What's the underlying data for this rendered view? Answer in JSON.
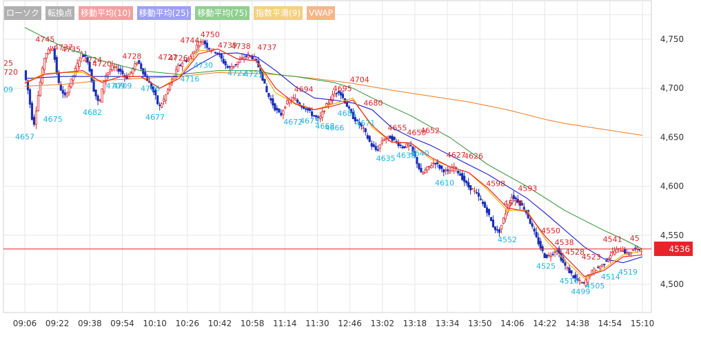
{
  "legend": [
    {
      "label": "ローソク",
      "bg": "#b0b0b0",
      "fg": "#ffffff"
    },
    {
      "label": "転換点",
      "bg": "#b0b0b0",
      "fg": "#ffffff"
    },
    {
      "label": "移動平均(10)",
      "bg": "#f4a0a0",
      "fg": "#ffffff"
    },
    {
      "label": "移動平均(25)",
      "bg": "#9ea0f4",
      "fg": "#ffffff"
    },
    {
      "label": "移動平均(75)",
      "bg": "#8fcf8f",
      "fg": "#ffffff"
    },
    {
      "label": "指数平滑(9)",
      "bg": "#f4d080",
      "fg": "#ffffff"
    },
    {
      "label": "VWAP",
      "bg": "#f6b58a",
      "fg": "#ffffff"
    }
  ],
  "current_price": {
    "label": "4536",
    "value": 4536,
    "color": "#e8232a"
  },
  "colors": {
    "up": "#d7262a",
    "down": "#1c2fb8",
    "ma10": "#e8232a",
    "ma25": "#2b2bd0",
    "ma75": "#2f8f2f",
    "ema9": "#f2b400",
    "vwap": "#f07820",
    "grid": "#e6e6e6"
  },
  "chart_data": {
    "type": "candlestick",
    "y_ticks": [
      "4,750",
      "4,700",
      "4,650",
      "4,600",
      "4,550",
      "4,500"
    ],
    "y_tick_values": [
      4750,
      4700,
      4650,
      4600,
      4550,
      4500
    ],
    "ylim": [
      4480,
      4790
    ],
    "x_ticks": [
      "09:06",
      "09:22",
      "09:38",
      "09:54",
      "10:10",
      "10:26",
      "10:42",
      "10:58",
      "11:14",
      "11:30",
      "12:46",
      "13:02",
      "13:18",
      "13:34",
      "13:50",
      "14:06",
      "14:22",
      "14:38",
      "14:54",
      "15:10"
    ],
    "price_path": [
      [
        0,
        4718
      ],
      [
        0.2,
        4700
      ],
      [
        0.5,
        4660
      ],
      [
        0.8,
        4700
      ],
      [
        1.1,
        4735
      ],
      [
        1.5,
        4742
      ],
      [
        1.8,
        4705
      ],
      [
        2.1,
        4690
      ],
      [
        2.5,
        4710
      ],
      [
        3,
        4736
      ],
      [
        3.3,
        4729
      ],
      [
        3.6,
        4700
      ],
      [
        3.9,
        4683
      ],
      [
        4.2,
        4712
      ],
      [
        4.6,
        4722
      ],
      [
        5,
        4718
      ],
      [
        5.3,
        4710
      ],
      [
        5.6,
        4718
      ],
      [
        5.9,
        4728
      ],
      [
        6.2,
        4716
      ],
      [
        6.5,
        4705
      ],
      [
        6.8,
        4693
      ],
      [
        7,
        4680
      ],
      [
        7.3,
        4690
      ],
      [
        7.6,
        4705
      ],
      [
        8,
        4722
      ],
      [
        8.3,
        4728
      ],
      [
        8.6,
        4730
      ],
      [
        9,
        4745
      ],
      [
        9.3,
        4748
      ],
      [
        9.6,
        4740
      ],
      [
        10,
        4737
      ],
      [
        10.3,
        4728
      ],
      [
        10.6,
        4720
      ],
      [
        11,
        4725
      ],
      [
        11.3,
        4730
      ],
      [
        11.6,
        4734
      ],
      [
        12,
        4730
      ],
      [
        12.3,
        4715
      ],
      [
        12.6,
        4695
      ],
      [
        13,
        4680
      ],
      [
        13.3,
        4672
      ],
      [
        13.6,
        4685
      ],
      [
        14,
        4690
      ],
      [
        14.3,
        4683
      ],
      [
        14.6,
        4680
      ],
      [
        15,
        4672
      ],
      [
        15.3,
        4668
      ],
      [
        15.6,
        4680
      ],
      [
        16,
        4692
      ],
      [
        16.3,
        4698
      ],
      [
        16.6,
        4688
      ],
      [
        17,
        4672
      ],
      [
        17.3,
        4665
      ],
      [
        17.6,
        4658
      ],
      [
        18,
        4642
      ],
      [
        18.3,
        4636
      ],
      [
        18.6,
        4648
      ],
      [
        19,
        4650
      ],
      [
        19.3,
        4645
      ],
      [
        19.6,
        4640
      ],
      [
        20,
        4642
      ],
      [
        20.3,
        4628
      ],
      [
        20.6,
        4612
      ],
      [
        21,
        4620
      ],
      [
        21.3,
        4625
      ],
      [
        21.6,
        4618
      ],
      [
        22,
        4614
      ],
      [
        22.3,
        4620
      ],
      [
        22.6,
        4612
      ],
      [
        23,
        4600
      ],
      [
        23.3,
        4596
      ],
      [
        23.6,
        4588
      ],
      [
        24,
        4575
      ],
      [
        24.3,
        4560
      ],
      [
        24.6,
        4552
      ],
      [
        25,
        4575
      ],
      [
        25.3,
        4590
      ],
      [
        25.6,
        4585
      ],
      [
        26,
        4575
      ],
      [
        26.3,
        4560
      ],
      [
        26.6,
        4545
      ],
      [
        27,
        4528
      ],
      [
        27.3,
        4530
      ],
      [
        27.6,
        4536
      ],
      [
        28,
        4520
      ],
      [
        28.3,
        4512
      ],
      [
        28.6,
        4505
      ],
      [
        29,
        4500
      ],
      [
        29.3,
        4510
      ],
      [
        29.6,
        4515
      ],
      [
        30,
        4520
      ],
      [
        30.3,
        4528
      ],
      [
        30.6,
        4534
      ],
      [
        31,
        4536
      ],
      [
        31.3,
        4530
      ],
      [
        31.6,
        4536
      ],
      [
        32,
        4536
      ]
    ],
    "highs": [
      {
        "label": "4745",
        "x": 1.05,
        "y": 4745
      },
      {
        "label": "4737",
        "x": 2.0,
        "y": 4737
      },
      {
        "label": "4735",
        "x": 2.4,
        "y": 4735
      },
      {
        "label": "4724",
        "x": 3.5,
        "y": 4724
      },
      {
        "label": "4720",
        "x": 4.0,
        "y": 4720
      },
      {
        "label": "4728",
        "x": 5.55,
        "y": 4728
      },
      {
        "label": "4727",
        "x": 7.4,
        "y": 4727
      },
      {
        "label": "4726",
        "x": 7.95,
        "y": 4726
      },
      {
        "label": "4744",
        "x": 8.55,
        "y": 4744
      },
      {
        "label": "4750",
        "x": 9.6,
        "y": 4750
      },
      {
        "label": "4739",
        "x": 10.5,
        "y": 4739
      },
      {
        "label": "4738",
        "x": 11.2,
        "y": 4738
      },
      {
        "label": "4737",
        "x": 12.55,
        "y": 4737
      },
      {
        "label": "4694",
        "x": 14.45,
        "y": 4694
      },
      {
        "label": "4695",
        "x": 16.45,
        "y": 4695
      },
      {
        "label": "4704",
        "x": 17.35,
        "y": 4704
      },
      {
        "label": "4680",
        "x": 18.05,
        "y": 4680
      },
      {
        "label": "4655",
        "x": 19.3,
        "y": 4655
      },
      {
        "label": "4650",
        "x": 20.3,
        "y": 4650
      },
      {
        "label": "4652",
        "x": 21.0,
        "y": 4652
      },
      {
        "label": "4627",
        "x": 22.35,
        "y": 4627
      },
      {
        "label": "4626",
        "x": 23.25,
        "y": 4626
      },
      {
        "label": "4598",
        "x": 24.4,
        "y": 4598
      },
      {
        "label": "4593",
        "x": 26.05,
        "y": 4593
      },
      {
        "label": "4578",
        "x": 25.3,
        "y": 4578
      },
      {
        "label": "4550",
        "x": 27.25,
        "y": 4550
      },
      {
        "label": "4538",
        "x": 27.95,
        "y": 4538
      },
      {
        "label": "4528",
        "x": 28.5,
        "y": 4528
      },
      {
        "label": "4523",
        "x": 29.35,
        "y": 4523
      },
      {
        "label": "4541",
        "x": 30.45,
        "y": 4541
      },
      {
        "label": "45",
        "x": 31.6,
        "y": 4542
      }
    ],
    "lows": [
      {
        "label": "4657",
        "x": 0.0,
        "y": 4657
      },
      {
        "label": "4675",
        "x": 1.45,
        "y": 4675
      },
      {
        "label": "4682",
        "x": 3.5,
        "y": 4682
      },
      {
        "label": "4709",
        "x": 4.7,
        "y": 4709
      },
      {
        "label": "4709",
        "x": 5.05,
        "y": 4709
      },
      {
        "label": "4706",
        "x": 6.5,
        "y": 4706
      },
      {
        "label": "4677",
        "x": 6.75,
        "y": 4677
      },
      {
        "label": "4716",
        "x": 8.55,
        "y": 4716
      },
      {
        "label": "4730",
        "x": 9.25,
        "y": 4730
      },
      {
        "label": "4722",
        "x": 11.0,
        "y": 4722
      },
      {
        "label": "4721",
        "x": 11.85,
        "y": 4721
      },
      {
        "label": "4672",
        "x": 13.9,
        "y": 4672
      },
      {
        "label": "4673",
        "x": 14.75,
        "y": 4673
      },
      {
        "label": "4668",
        "x": 15.55,
        "y": 4668
      },
      {
        "label": "4666",
        "x": 16.05,
        "y": 4666
      },
      {
        "label": "4681",
        "x": 16.7,
        "y": 4681
      },
      {
        "label": "4671",
        "x": 17.65,
        "y": 4671
      },
      {
        "label": "4635",
        "x": 18.7,
        "y": 4635
      },
      {
        "label": "4638",
        "x": 19.75,
        "y": 4638
      },
      {
        "label": "4640",
        "x": 20.45,
        "y": 4640
      },
      {
        "label": "4610",
        "x": 21.75,
        "y": 4610
      },
      {
        "label": "4552",
        "x": 25.0,
        "y": 4552
      },
      {
        "label": "4525",
        "x": 27.0,
        "y": 4525
      },
      {
        "label": "4510",
        "x": 28.2,
        "y": 4510
      },
      {
        "label": "4499",
        "x": 28.8,
        "y": 4499
      },
      {
        "label": "4505",
        "x": 29.55,
        "y": 4505
      },
      {
        "label": "4514",
        "x": 30.35,
        "y": 4514
      },
      {
        "label": "4519",
        "x": 31.25,
        "y": 4519
      }
    ],
    "cut_left_labels": [
      {
        "label": "25",
        "y": 4723
      },
      {
        "label": "720",
        "y": 4714
      },
      {
        "label": "09",
        "y": 4696
      }
    ],
    "ma10": [
      [
        0,
        4705
      ],
      [
        1,
        4714
      ],
      [
        2,
        4716
      ],
      [
        3,
        4718
      ],
      [
        4,
        4706
      ],
      [
        5,
        4712
      ],
      [
        6,
        4712
      ],
      [
        7,
        4700
      ],
      [
        8,
        4710
      ],
      [
        9,
        4735
      ],
      [
        10,
        4740
      ],
      [
        11,
        4730
      ],
      [
        12,
        4728
      ],
      [
        13,
        4700
      ],
      [
        14,
        4684
      ],
      [
        15,
        4678
      ],
      [
        16,
        4682
      ],
      [
        17,
        4688
      ],
      [
        18,
        4662
      ],
      [
        19,
        4645
      ],
      [
        20,
        4644
      ],
      [
        21,
        4630
      ],
      [
        22,
        4620
      ],
      [
        23,
        4614
      ],
      [
        24,
        4598
      ],
      [
        25,
        4578
      ],
      [
        26,
        4574
      ],
      [
        27,
        4548
      ],
      [
        28,
        4528
      ],
      [
        29,
        4508
      ],
      [
        30,
        4514
      ],
      [
        31,
        4528
      ],
      [
        32,
        4530
      ]
    ],
    "ma25": [
      [
        0,
        4710
      ],
      [
        2,
        4712
      ],
      [
        4,
        4712
      ],
      [
        6,
        4712
      ],
      [
        8,
        4712
      ],
      [
        9,
        4724
      ],
      [
        10,
        4735
      ],
      [
        11,
        4736
      ],
      [
        12,
        4732
      ],
      [
        13,
        4718
      ],
      [
        14,
        4702
      ],
      [
        15,
        4690
      ],
      [
        16,
        4688
      ],
      [
        17,
        4685
      ],
      [
        18,
        4678
      ],
      [
        19,
        4660
      ],
      [
        20,
        4650
      ],
      [
        21,
        4642
      ],
      [
        22,
        4632
      ],
      [
        23,
        4622
      ],
      [
        24,
        4612
      ],
      [
        25,
        4600
      ],
      [
        26,
        4588
      ],
      [
        27,
        4572
      ],
      [
        28,
        4555
      ],
      [
        29,
        4538
      ],
      [
        30,
        4526
      ],
      [
        31,
        4522
      ],
      [
        32,
        4528
      ]
    ],
    "ma75": [
      [
        0,
        4762
      ],
      [
        2,
        4742
      ],
      [
        4,
        4728
      ],
      [
        6,
        4718
      ],
      [
        8,
        4714
      ],
      [
        10,
        4718
      ],
      [
        12,
        4718
      ],
      [
        13,
        4714
      ],
      [
        14,
        4712
      ],
      [
        16,
        4706
      ],
      [
        17,
        4700
      ],
      [
        18,
        4690
      ],
      [
        20,
        4672
      ],
      [
        22,
        4650
      ],
      [
        24,
        4622
      ],
      [
        26,
        4600
      ],
      [
        28,
        4575
      ],
      [
        30,
        4555
      ],
      [
        31,
        4546
      ],
      [
        32,
        4536
      ]
    ],
    "ema9": [
      [
        0,
        4706
      ],
      [
        1,
        4715
      ],
      [
        2,
        4716
      ],
      [
        3,
        4716
      ],
      [
        4,
        4706
      ],
      [
        5,
        4712
      ],
      [
        6,
        4712
      ],
      [
        7,
        4700
      ],
      [
        8,
        4712
      ],
      [
        9,
        4738
      ],
      [
        10,
        4740
      ],
      [
        11,
        4730
      ],
      [
        12,
        4728
      ],
      [
        13,
        4695
      ],
      [
        14,
        4685
      ],
      [
        15,
        4678
      ],
      [
        16,
        4684
      ],
      [
        17,
        4690
      ],
      [
        18,
        4660
      ],
      [
        19,
        4645
      ],
      [
        20,
        4644
      ],
      [
        21,
        4628
      ],
      [
        22,
        4620
      ],
      [
        23,
        4614
      ],
      [
        24,
        4596
      ],
      [
        25,
        4575
      ],
      [
        26,
        4576
      ],
      [
        27,
        4545
      ],
      [
        28,
        4524
      ],
      [
        29,
        4506
      ],
      [
        30,
        4516
      ],
      [
        31,
        4530
      ],
      [
        32,
        4534
      ]
    ],
    "vwap": [
      [
        0,
        4702
      ],
      [
        2,
        4704
      ],
      [
        4,
        4708
      ],
      [
        6,
        4710
      ],
      [
        8,
        4712
      ],
      [
        10,
        4716
      ],
      [
        12,
        4715
      ],
      [
        13,
        4714
      ],
      [
        15,
        4710
      ],
      [
        17,
        4705
      ],
      [
        19,
        4698
      ],
      [
        21,
        4692
      ],
      [
        23,
        4686
      ],
      [
        25,
        4678
      ],
      [
        26,
        4673
      ],
      [
        27,
        4668
      ],
      [
        28,
        4664
      ],
      [
        30,
        4658
      ],
      [
        32,
        4652
      ]
    ]
  }
}
